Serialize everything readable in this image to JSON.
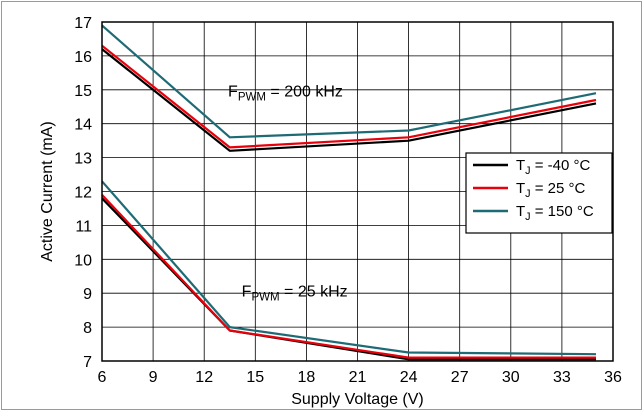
{
  "chart_data": {
    "type": "line",
    "xlabel": "Supply Voltage (V)",
    "ylabel": "Active Current (mA)",
    "xlim": [
      6,
      36
    ],
    "ylim": [
      7,
      17
    ],
    "xticks": [
      "6",
      "9",
      "12",
      "15",
      "18",
      "21",
      "24",
      "27",
      "30",
      "33",
      "36"
    ],
    "yticks": [
      "7",
      "8",
      "9",
      "10",
      "11",
      "12",
      "13",
      "14",
      "15",
      "16",
      "17"
    ],
    "grid": true,
    "legend_position": "right",
    "legend": [
      {
        "main": "T",
        "sub": "J",
        "rest": " = -40 °C",
        "color": "#000000"
      },
      {
        "main": "T",
        "sub": "J",
        "rest": " = 25 °C",
        "color": "#e8000b"
      },
      {
        "main": "T",
        "sub": "J",
        "rest": " = 150 °C",
        "color": "#1f6b75"
      }
    ],
    "annotations": [
      {
        "main": "F",
        "sub": "PWM",
        "rest": " = 200 kHz",
        "ax": 200,
        "x": 13.4,
        "y": 14.8
      },
      {
        "main": "F",
        "sub": "PWM",
        "rest": " = 25 kHz",
        "ax": 25,
        "x": 14.2,
        "y": 8.9
      }
    ],
    "series": [
      {
        "group": "200 kHz",
        "tj": -40,
        "color": "#000000",
        "x": [
          6,
          13.5,
          24,
          35
        ],
        "y": [
          16.2,
          13.2,
          13.5,
          14.6
        ]
      },
      {
        "group": "200 kHz",
        "tj": 25,
        "color": "#e8000b",
        "x": [
          6,
          13.5,
          24,
          35
        ],
        "y": [
          16.3,
          13.3,
          13.6,
          14.7
        ]
      },
      {
        "group": "200 kHz",
        "tj": 150,
        "color": "#1f6b75",
        "x": [
          6,
          13.5,
          24,
          35
        ],
        "y": [
          16.9,
          13.6,
          13.8,
          14.9
        ]
      },
      {
        "group": "25 kHz",
        "tj": -40,
        "color": "#000000",
        "x": [
          6,
          13.5,
          24,
          35
        ],
        "y": [
          11.8,
          7.9,
          7.05,
          7.05
        ]
      },
      {
        "group": "25 kHz",
        "tj": 25,
        "color": "#e8000b",
        "x": [
          6,
          13.5,
          24,
          35
        ],
        "y": [
          11.9,
          7.9,
          7.1,
          7.1
        ]
      },
      {
        "group": "25 kHz",
        "tj": 150,
        "color": "#1f6b75",
        "x": [
          6,
          13.5,
          24,
          35
        ],
        "y": [
          12.3,
          8.0,
          7.25,
          7.2
        ]
      }
    ]
  }
}
